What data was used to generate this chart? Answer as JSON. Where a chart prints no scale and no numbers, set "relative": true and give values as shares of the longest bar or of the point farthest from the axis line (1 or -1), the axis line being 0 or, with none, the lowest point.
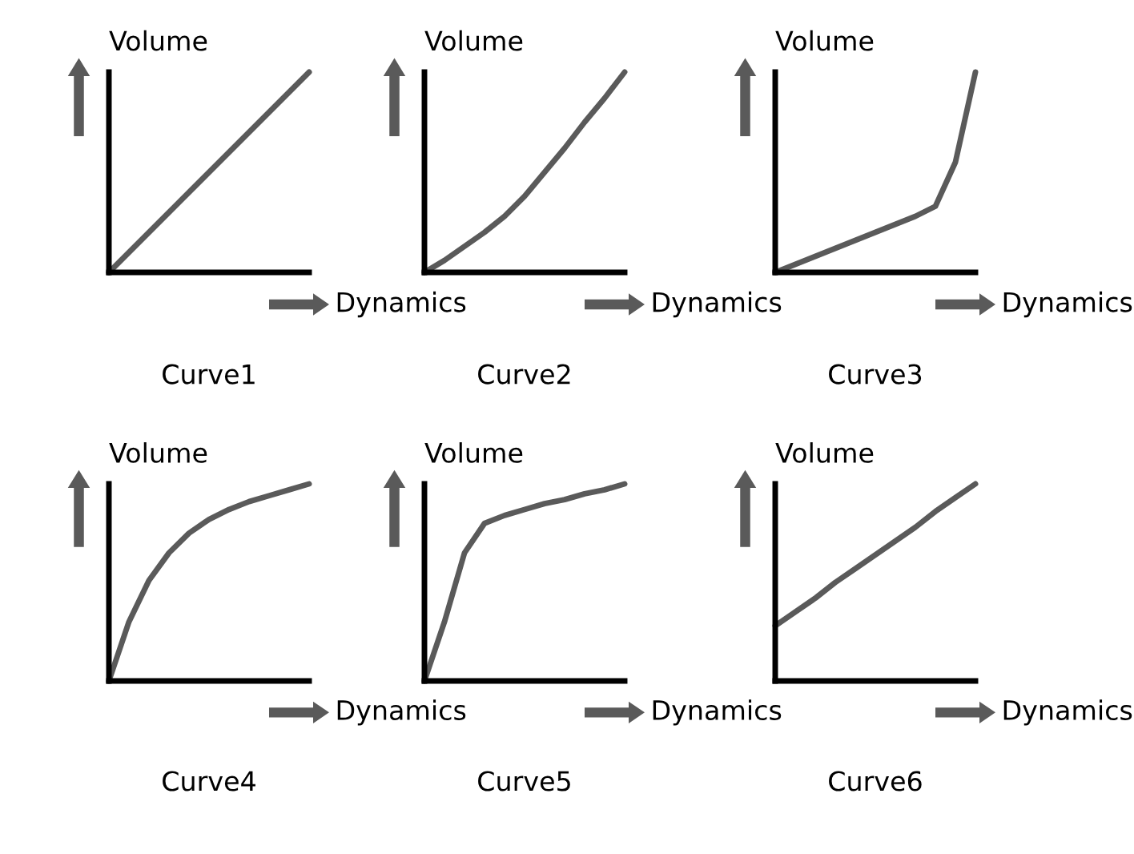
{
  "chart_data": [
    {
      "type": "line",
      "title": "Curve1",
      "xlabel": "Dynamics",
      "ylabel": "Volume",
      "relative": true,
      "categories": [
        null,
        null,
        null,
        null,
        null,
        null,
        null,
        null,
        null,
        null,
        null
      ],
      "series": [
        {
          "color": "#5a5a5a",
          "values": [
            0,
            0.1,
            0.2,
            0.3,
            0.4,
            0.5,
            0.6,
            0.7,
            0.8,
            0.9,
            1
          ]
        }
      ]
    },
    {
      "type": "line",
      "title": "Curve2",
      "xlabel": "Dynamics",
      "ylabel": "Volume",
      "relative": true,
      "categories": [
        null,
        null,
        null,
        null,
        null,
        null,
        null,
        null,
        null,
        null,
        null
      ],
      "series": [
        {
          "color": "#5a5a5a",
          "values": [
            0,
            0.06,
            0.13,
            0.2,
            0.28,
            0.38,
            0.5,
            0.62,
            0.75,
            0.87,
            1
          ]
        }
      ]
    },
    {
      "type": "line",
      "title": "Curve3",
      "xlabel": "Dynamics",
      "ylabel": "Volume",
      "relative": true,
      "categories": [
        null,
        null,
        null,
        null,
        null,
        null,
        null,
        null,
        null,
        null,
        null
      ],
      "series": [
        {
          "color": "#5a5a5a",
          "values": [
            0,
            0.04,
            0.08,
            0.12,
            0.16,
            0.2,
            0.24,
            0.28,
            0.33,
            0.55,
            1
          ]
        }
      ]
    },
    {
      "type": "line",
      "title": "Curve4",
      "xlabel": "Dynamics",
      "ylabel": "Volume",
      "relative": true,
      "categories": [
        null,
        null,
        null,
        null,
        null,
        null,
        null,
        null,
        null,
        null,
        null
      ],
      "series": [
        {
          "color": "#5a5a5a",
          "values": [
            0,
            0.3,
            0.51,
            0.65,
            0.75,
            0.82,
            0.87,
            0.91,
            0.94,
            0.97,
            1
          ]
        }
      ]
    },
    {
      "type": "line",
      "title": "Curve5",
      "xlabel": "Dynamics",
      "ylabel": "Volume",
      "relative": true,
      "categories": [
        null,
        null,
        null,
        null,
        null,
        null,
        null,
        null,
        null,
        null,
        null
      ],
      "series": [
        {
          "color": "#5a5a5a",
          "values": [
            0,
            0.3,
            0.65,
            0.8,
            0.84,
            0.87,
            0.9,
            0.92,
            0.95,
            0.97,
            1
          ]
        }
      ]
    },
    {
      "type": "line",
      "title": "Curve6",
      "xlabel": "Dynamics",
      "ylabel": "Volume",
      "relative": true,
      "categories": [
        null,
        null,
        null,
        null,
        null,
        null,
        null,
        null,
        null,
        null,
        null
      ],
      "series": [
        {
          "color": "#5a5a5a",
          "values": [
            0.28,
            0.35,
            0.42,
            0.5,
            0.57,
            0.64,
            0.71,
            0.78,
            0.86,
            0.93,
            1
          ]
        }
      ]
    }
  ]
}
